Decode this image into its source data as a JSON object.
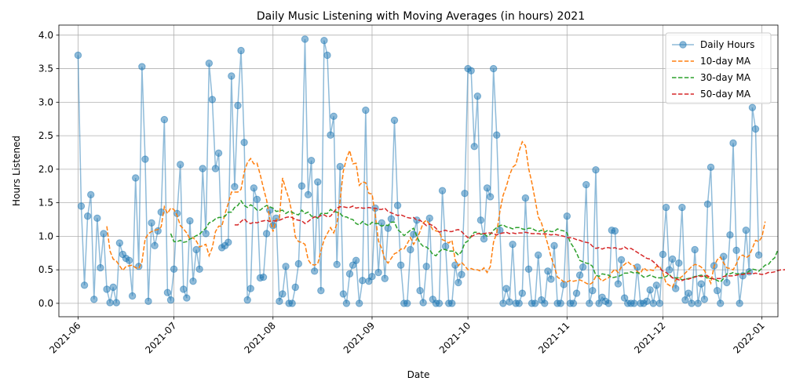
{
  "chart_data": {
    "type": "line",
    "title": "Daily Music Listening with Moving Averages (in hours) 2021",
    "xlabel": "Date",
    "ylabel": "Hours Listened",
    "xlim": [
      "2021-05-26",
      "2022-01-06"
    ],
    "ylim": [
      -0.2,
      4.15
    ],
    "x_ticks": [
      "2021-06",
      "2021-07",
      "2021-08",
      "2021-09",
      "2021-10",
      "2021-11",
      "2021-12",
      "2022-01"
    ],
    "y_ticks": [
      "0.0",
      "0.5",
      "1.0",
      "1.5",
      "2.0",
      "2.5",
      "3.0",
      "3.5",
      "4.0"
    ],
    "grid": true,
    "legend_position": "top-right",
    "x_start": "2021-06-01",
    "series": [
      {
        "name": "Daily Hours",
        "style": "line-markers",
        "color": "#1f77b4",
        "values": [
          3.7,
          1.45,
          0.27,
          1.3,
          1.62,
          0.06,
          1.27,
          0.53,
          1.04,
          0.21,
          0.01,
          0.24,
          0.01,
          0.9,
          0.73,
          0.67,
          0.64,
          0.11,
          1.87,
          0.55,
          3.53,
          2.15,
          0.03,
          1.2,
          0.86,
          1.08,
          1.36,
          2.74,
          0.16,
          0.05,
          0.51,
          1.34,
          2.07,
          0.21,
          0.08,
          1.23,
          0.33,
          0.8,
          0.51,
          2.01,
          1.04,
          3.58,
          3.04,
          2.01,
          2.24,
          0.83,
          0.86,
          0.91,
          3.39,
          1.74,
          2.95,
          3.77,
          2.4,
          0.05,
          0.22,
          1.72,
          1.55,
          0.38,
          0.39,
          1.04,
          1.39,
          1.16,
          1.27,
          0.03,
          0.14,
          0.55,
          0.0,
          0.0,
          0.24,
          0.59,
          1.75,
          3.94,
          1.62,
          2.13,
          0.48,
          1.81,
          0.19,
          3.92,
          3.7,
          2.51,
          2.79,
          0.58,
          2.04,
          0.14,
          0.0,
          0.44,
          0.57,
          0.64,
          0.0,
          0.34,
          2.88,
          0.33,
          0.4,
          1.42,
          0.46,
          1.2,
          0.37,
          1.12,
          1.26,
          2.73,
          1.46,
          0.57,
          0.0,
          0.0,
          0.8,
          1.03,
          1.24,
          0.19,
          0.01,
          0.55,
          1.27,
          0.06,
          0.0,
          0.0,
          1.68,
          0.85,
          0.0,
          0.0,
          0.57,
          0.31,
          0.43,
          1.64,
          3.5,
          3.47,
          2.34,
          3.09,
          1.24,
          0.96,
          1.72,
          1.59,
          3.5,
          2.51,
          1.09,
          0.0,
          0.22,
          0.02,
          0.88,
          0.0,
          0.0,
          0.15,
          1.57,
          0.51,
          0.0,
          0.0,
          0.72,
          0.05,
          0.0,
          0.48,
          0.36,
          0.86,
          0.0,
          0.0,
          0.28,
          1.3,
          0.0,
          0.0,
          0.15,
          0.42,
          0.54,
          1.77,
          0.0,
          0.19,
          1.99,
          0.0,
          0.09,
          0.03,
          0.0,
          1.09,
          1.08,
          0.29,
          0.65,
          0.08,
          0.0,
          0.0,
          0.0,
          0.54,
          0.0,
          0.0,
          0.03,
          0.2,
          0.0,
          0.27,
          0.0,
          0.73,
          1.43,
          0.5,
          0.66,
          0.22,
          0.6,
          1.43,
          0.05,
          0.15,
          0.0,
          0.8,
          0.0,
          0.29,
          0.06,
          1.48,
          2.03,
          0.56,
          0.19,
          0.0,
          0.7,
          0.31,
          1.02,
          2.39,
          0.79,
          0.0,
          0.41,
          1.09,
          0.47,
          2.92,
          2.6,
          0.72
        ]
      },
      {
        "name": "10-day MA",
        "style": "dashed",
        "color": "#ff7f0e",
        "start_index": 9,
        "values": [
          1.15,
          0.78,
          0.66,
          0.63,
          0.56,
          0.49,
          0.55,
          0.56,
          0.57,
          0.53,
          0.52,
          0.62,
          0.96,
          1.04,
          1.07,
          1.09,
          1.1,
          1.14,
          1.44,
          1.34,
          1.42,
          1.4,
          1.31,
          1.16,
          1.11,
          1.05,
          0.96,
          0.98,
          0.93,
          0.84,
          0.86,
          0.88,
          0.71,
          0.83,
          1.07,
          1.15,
          1.15,
          1.34,
          1.49,
          1.66,
          1.66,
          1.66,
          1.7,
          1.96,
          2.1,
          2.16,
          2.08,
          2.09,
          1.92,
          1.72,
          1.54,
          1.26,
          1.07,
          1.25,
          1.26,
          1.87,
          1.7,
          1.56,
          1.33,
          0.99,
          0.92,
          0.91,
          0.88,
          0.65,
          0.58,
          0.57,
          0.59,
          0.78,
          0.95,
          1.04,
          1.13,
          1.05,
          1.19,
          1.54,
          1.97,
          2.16,
          2.28,
          2.08,
          2.09,
          1.76,
          1.81,
          1.8,
          1.64,
          1.63,
          1.32,
          0.93,
          0.82,
          0.66,
          0.6,
          0.67,
          0.74,
          0.76,
          0.81,
          0.81,
          0.89,
          0.98,
          0.88,
          0.96,
          1.07,
          1.2,
          1.24,
          1.18,
          1.1,
          1.08,
          1.07,
          0.95,
          0.93,
          0.9,
          0.94,
          0.65,
          0.56,
          0.61,
          0.56,
          0.5,
          0.52,
          0.5,
          0.5,
          0.48,
          0.53,
          0.46,
          0.55,
          0.91,
          1.05,
          1.37,
          1.61,
          1.74,
          1.91,
          2.03,
          2.07,
          2.27,
          2.41,
          2.35,
          2.01,
          1.8,
          1.55,
          1.29,
          1.2,
          1.04,
          0.88,
          0.69,
          0.56,
          0.39,
          0.36,
          0.32,
          0.32,
          0.34,
          0.33,
          0.34,
          0.35,
          0.33,
          0.3,
          0.28,
          0.31,
          0.4,
          0.38,
          0.33,
          0.36,
          0.38,
          0.46,
          0.51,
          0.46,
          0.54,
          0.58,
          0.62,
          0.58,
          0.56,
          0.47,
          0.45,
          0.53,
          0.49,
          0.5,
          0.49,
          0.55,
          0.55,
          0.45,
          0.3,
          0.27,
          0.24,
          0.35,
          0.37,
          0.4,
          0.45,
          0.5,
          0.55,
          0.58,
          0.57,
          0.54,
          0.49,
          0.4,
          0.3,
          0.55,
          0.65,
          0.69,
          0.6,
          0.53,
          0.52,
          0.5,
          0.59,
          0.7,
          0.72,
          0.68,
          0.71,
          0.82,
          0.94,
          0.92,
          0.99,
          1.22
        ]
      },
      {
        "name": "30-day MA",
        "style": "dashed",
        "color": "#2ca02c",
        "start_index": 29,
        "values": [
          1.04,
          0.92,
          0.92,
          0.94,
          0.91,
          0.92,
          0.96,
          0.98,
          1.01,
          1.03,
          1.08,
          1.12,
          1.2,
          1.22,
          1.26,
          1.28,
          1.28,
          1.3,
          1.36,
          1.36,
          1.43,
          1.46,
          1.53,
          1.46,
          1.43,
          1.47,
          1.44,
          1.39,
          1.39,
          1.43,
          1.46,
          1.44,
          1.42,
          1.37,
          1.38,
          1.39,
          1.34,
          1.37,
          1.36,
          1.33,
          1.32,
          1.39,
          1.34,
          1.36,
          1.3,
          1.3,
          1.27,
          1.34,
          1.34,
          1.34,
          1.4,
          1.37,
          1.36,
          1.34,
          1.29,
          1.29,
          1.26,
          1.25,
          1.19,
          1.17,
          1.22,
          1.18,
          1.16,
          1.21,
          1.19,
          1.19,
          1.15,
          1.17,
          1.16,
          1.21,
          1.21,
          1.1,
          1.06,
          1.01,
          1.05,
          1.09,
          1.12,
          1.0,
          0.9,
          0.85,
          0.84,
          0.8,
          0.73,
          0.71,
          0.77,
          0.81,
          0.8,
          0.78,
          0.78,
          0.77,
          0.72,
          0.77,
          0.9,
          0.93,
          1.0,
          1.06,
          1.06,
          1.03,
          1.04,
          1.0,
          1.03,
          1.09,
          1.13,
          1.16,
          1.17,
          1.14,
          1.13,
          1.11,
          1.13,
          1.13,
          1.11,
          1.1,
          1.12,
          1.12,
          1.09,
          1.07,
          1.09,
          1.06,
          1.09,
          1.07,
          1.07,
          1.11,
          1.09,
          1.08,
          1.05,
          0.91,
          0.84,
          0.75,
          0.64,
          0.62,
          0.6,
          0.59,
          0.55,
          0.42,
          0.4,
          0.44,
          0.43,
          0.42,
          0.38,
          0.39,
          0.4,
          0.42,
          0.45,
          0.45,
          0.47,
          0.45,
          0.46,
          0.43,
          0.39,
          0.4,
          0.42,
          0.4,
          0.38,
          0.38,
          0.38,
          0.4,
          0.43,
          0.38,
          0.38,
          0.38,
          0.35,
          0.36,
          0.37,
          0.38,
          0.4,
          0.41,
          0.42,
          0.41,
          0.37,
          0.37,
          0.37,
          0.34,
          0.32,
          0.37,
          0.44,
          0.44,
          0.46,
          0.44,
          0.44,
          0.44,
          0.45,
          0.48,
          0.51,
          0.5,
          0.48,
          0.52,
          0.57,
          0.58,
          0.64,
          0.68,
          0.8
        ]
      },
      {
        "name": "50-day MA",
        "style": "dashed",
        "color": "#d62728",
        "start_index": 49,
        "values": [
          1.17,
          1.17,
          1.22,
          1.26,
          1.21,
          1.19,
          1.21,
          1.2,
          1.22,
          1.23,
          1.24,
          1.22,
          1.23,
          1.23,
          1.24,
          1.26,
          1.28,
          1.29,
          1.28,
          1.25,
          1.24,
          1.23,
          1.19,
          1.22,
          1.26,
          1.29,
          1.28,
          1.31,
          1.32,
          1.29,
          1.3,
          1.36,
          1.42,
          1.44,
          1.44,
          1.43,
          1.43,
          1.45,
          1.42,
          1.43,
          1.42,
          1.42,
          1.43,
          1.42,
          1.42,
          1.4,
          1.4,
          1.42,
          1.37,
          1.35,
          1.33,
          1.31,
          1.32,
          1.3,
          1.28,
          1.27,
          1.28,
          1.24,
          1.24,
          1.2,
          1.16,
          1.18,
          1.16,
          1.12,
          1.06,
          1.08,
          1.09,
          1.07,
          1.07,
          1.09,
          1.1,
          1.07,
          1.02,
          0.98,
          0.99,
          1.02,
          1.04,
          1.04,
          1.04,
          1.05,
          1.05,
          1.04,
          1.02,
          1.04,
          1.05,
          1.06,
          1.04,
          1.05,
          1.04,
          1.05,
          1.05,
          1.06,
          1.05,
          1.04,
          1.04,
          1.04,
          1.03,
          1.04,
          1.03,
          1.02,
          1.03,
          1.02,
          1.01,
          1.0,
          0.98,
          0.98,
          0.97,
          0.95,
          0.94,
          0.92,
          0.91,
          0.9,
          0.85,
          0.82,
          0.83,
          0.81,
          0.83,
          0.83,
          0.82,
          0.83,
          0.81,
          0.81,
          0.84,
          0.81,
          0.82,
          0.79,
          0.76,
          0.73,
          0.7,
          0.67,
          0.66,
          0.62,
          0.58,
          0.52,
          0.48,
          0.46,
          0.42,
          0.38,
          0.37,
          0.35,
          0.34,
          0.36,
          0.36,
          0.38,
          0.39,
          0.41,
          0.4,
          0.41,
          0.41,
          0.38,
          0.36,
          0.37,
          0.37,
          0.4,
          0.41,
          0.41,
          0.41,
          0.42,
          0.43,
          0.43,
          0.44,
          0.45,
          0.44,
          0.45,
          0.44,
          0.43,
          0.44,
          0.46,
          0.46,
          0.47,
          0.49,
          0.5,
          0.5,
          0.52,
          0.56,
          0.58,
          0.59
        ]
      }
    ]
  }
}
